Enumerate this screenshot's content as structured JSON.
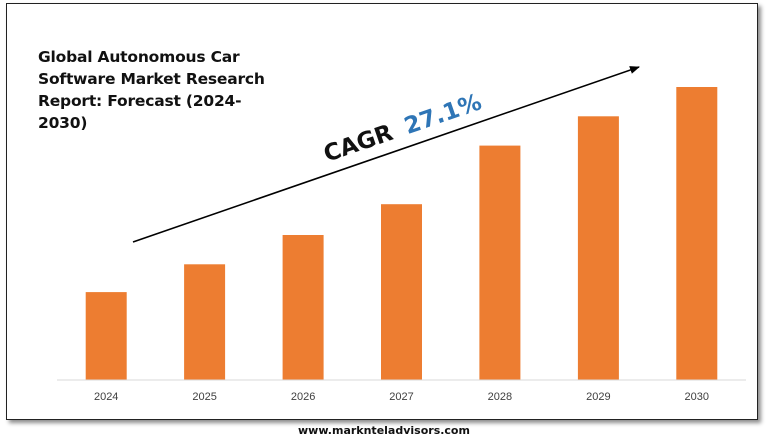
{
  "chart_data": {
    "type": "bar",
    "title": "Global Autonomous Car Software Market Research Report: Forecast (2024-2030)",
    "categories": [
      "2024",
      "2025",
      "2026",
      "2027",
      "2028",
      "2029",
      "2030"
    ],
    "values": [
      30,
      39.5,
      49.5,
      60,
      80,
      90,
      100
    ],
    "ylim": [
      0,
      100
    ],
    "bar_color": "#ED7D31",
    "annotation": {
      "label": "CAGR",
      "value": "27.1%",
      "label_color": "#111111",
      "value_color": "#2E75B6"
    },
    "grid": false,
    "legend": "none"
  },
  "footer": {
    "website": "www.marknteladvisors.com"
  }
}
